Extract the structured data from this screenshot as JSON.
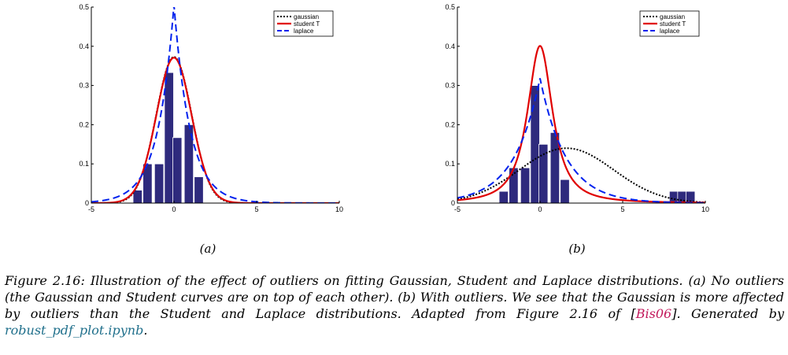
{
  "chart_data": [
    {
      "type": "bar",
      "panel_label": "(a)",
      "xlim": [
        -5,
        10
      ],
      "ylim": [
        0,
        0.5
      ],
      "x_ticks": [
        "-5",
        "0",
        "5",
        "10"
      ],
      "y_ticks": [
        "0",
        "0.1",
        "0.2",
        "0.3",
        "0.4",
        "0.5"
      ],
      "bars": {
        "bin_width": 0.55,
        "centers": [
          -2.2,
          -1.6,
          -0.9,
          -0.3,
          0.2,
          0.9,
          1.5
        ],
        "values": [
          0.033,
          0.1,
          0.1,
          0.333,
          0.167,
          0.2,
          0.067
        ],
        "color": "#2e2a7d"
      },
      "curves": [
        {
          "name": "gaussian",
          "dist": "normal",
          "loc": 0.0,
          "scale": 1.07,
          "color": "#000000",
          "style": "dotted"
        },
        {
          "name": "student T",
          "dist": "student",
          "loc": 0.0,
          "scale": 1.07,
          "df": 50,
          "color": "#e00000",
          "style": "solid"
        },
        {
          "name": "laplace",
          "dist": "laplace",
          "loc": 0.0,
          "scale": 0.99,
          "color": "#0022ee",
          "style": "dashed"
        }
      ],
      "legend": [
        "gaussian",
        "student T",
        "laplace"
      ],
      "legend_loc": "top-right"
    },
    {
      "type": "bar",
      "panel_label": "(b)",
      "xlim": [
        -5,
        10
      ],
      "ylim": [
        0,
        0.5
      ],
      "x_ticks": [
        "-5",
        "0",
        "5",
        "10"
      ],
      "y_ticks": [
        "0",
        "0.1",
        "0.2",
        "0.3",
        "0.4",
        "0.5"
      ],
      "bars": {
        "bin_width": 0.55,
        "centers": [
          -2.2,
          -1.6,
          -0.9,
          -0.3,
          0.2,
          0.9,
          1.5,
          8.1,
          8.6,
          9.1
        ],
        "values": [
          0.03,
          0.09,
          0.09,
          0.3,
          0.15,
          0.18,
          0.06,
          0.03,
          0.03,
          0.03
        ],
        "color": "#2e2a7d"
      },
      "curves": [
        {
          "name": "gaussian",
          "dist": "normal",
          "loc": 1.6,
          "scale": 2.85,
          "color": "#000000",
          "style": "dotted"
        },
        {
          "name": "student T",
          "dist": "student",
          "loc": 0.0,
          "scale": 0.85,
          "df": 1.5,
          "color": "#e00000",
          "style": "solid"
        },
        {
          "name": "laplace",
          "dist": "laplace",
          "loc": 0.0,
          "scale": 1.57,
          "color": "#0022ee",
          "style": "dashed"
        }
      ],
      "legend": [
        "gaussian",
        "student T",
        "laplace"
      ],
      "legend_loc": "top-right"
    }
  ],
  "caption": {
    "line1": "Figure 2.16: Illustration of the effect of outliers on fitting Gaussian, Student and Laplace distributions. (a)",
    "line2": "No outliers (the Gaussian and Student curves are on top of each other). (b) With outliers. We see that the",
    "line3": "Gaussian is more affected by outliers than the Student and Laplace distributions. Adapted from Figure 2.16",
    "line4_pre": "of [",
    "cite": "Bis06",
    "line4_mid": "]. Generated by ",
    "link": "robust_pdf_plot.ipynb",
    "line4_post": "."
  }
}
